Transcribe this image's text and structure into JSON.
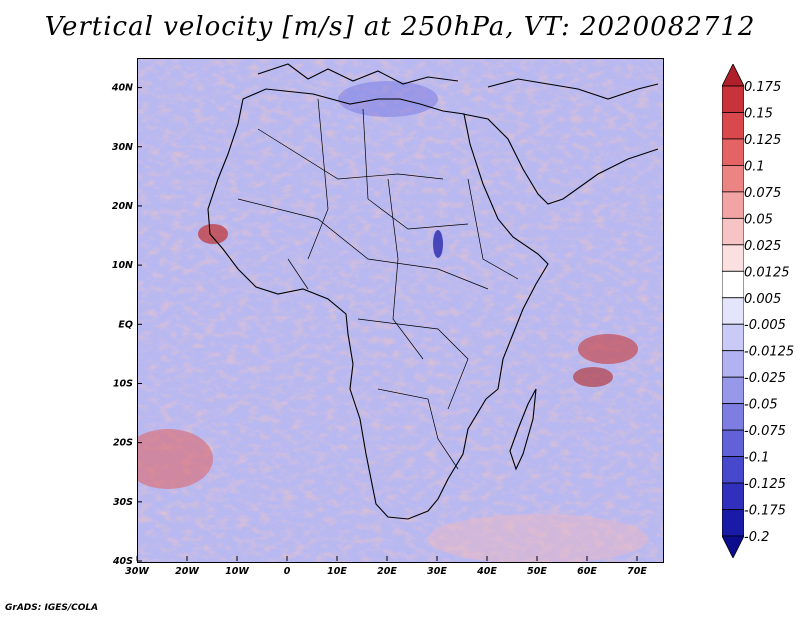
{
  "title": "Vertical velocity [m/s] at 250hPa, VT: 2020082712",
  "footer": "GrADS: IGES/COLA",
  "map": {
    "lon_range": [
      -30,
      75
    ],
    "lat_range": [
      -40,
      45
    ],
    "x_ticks": [
      {
        "lon": -30,
        "label": "30W"
      },
      {
        "lon": -20,
        "label": "20W"
      },
      {
        "lon": -10,
        "label": "10W"
      },
      {
        "lon": 0,
        "label": "0"
      },
      {
        "lon": 10,
        "label": "10E"
      },
      {
        "lon": 20,
        "label": "20E"
      },
      {
        "lon": 30,
        "label": "30E"
      },
      {
        "lon": 40,
        "label": "40E"
      },
      {
        "lon": 50,
        "label": "50E"
      },
      {
        "lon": 60,
        "label": "60E"
      },
      {
        "lon": 70,
        "label": "70E"
      }
    ],
    "y_ticks": [
      {
        "lat": 40,
        "label": "40N"
      },
      {
        "lat": 30,
        "label": "30N"
      },
      {
        "lat": 20,
        "label": "20N"
      },
      {
        "lat": 10,
        "label": "10N"
      },
      {
        "lat": 0,
        "label": "EQ"
      },
      {
        "lat": -10,
        "label": "10S"
      },
      {
        "lat": -20,
        "label": "20S"
      },
      {
        "lat": -30,
        "label": "30S"
      },
      {
        "lat": -40,
        "label": "40S"
      }
    ]
  },
  "colorbar": {
    "levels": [
      "0.175",
      "0.15",
      "0.125",
      "0.1",
      "0.075",
      "0.05",
      "0.025",
      "0.0125",
      "0.005",
      "-0.005",
      "-0.0125",
      "-0.025",
      "-0.05",
      "-0.075",
      "-0.1",
      "-0.125",
      "-0.175",
      "-0.2"
    ],
    "colors": [
      "#b0202a",
      "#c8323a",
      "#d8484c",
      "#e46466",
      "#ec8484",
      "#f2a4a4",
      "#f6c4c4",
      "#fae0e0",
      "#ffffff",
      "#e4e4fa",
      "#cacaf6",
      "#b2b2f2",
      "#9898ea",
      "#7e7ee2",
      "#6262d8",
      "#4848cc",
      "#3030bc",
      "#1a1aa8",
      "#0c0c8c"
    ]
  }
}
